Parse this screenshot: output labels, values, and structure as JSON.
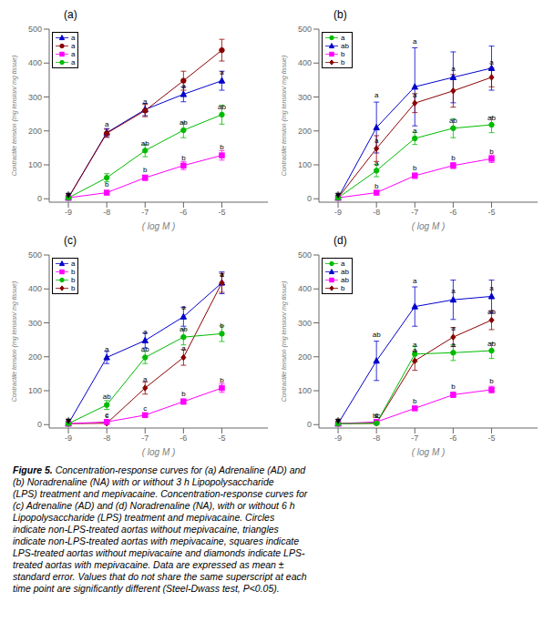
{
  "chart_data": [
    {
      "type": "line",
      "title": "(a)",
      "x_label": "( log M )",
      "y_label": "Contractile tension (mg tension/ mg tissue)",
      "xlim": [
        -9.5,
        -3.8
      ],
      "ylim": [
        -10,
        500
      ],
      "xticks": [
        -9,
        -8,
        -7,
        -6,
        -5
      ],
      "yticks": [
        0,
        100,
        200,
        300,
        400,
        500
      ],
      "x": [
        -9,
        -8,
        -7,
        -6,
        -5
      ],
      "series": [
        {
          "color": "#0000CC",
          "marker": "triangle",
          "values": [
            3,
            195,
            263,
            308,
            348
          ],
          "errors": [
            2,
            12,
            18,
            22,
            28
          ]
        },
        {
          "color": "#8B0000",
          "marker": "circle",
          "values": [
            3,
            193,
            260,
            348,
            438
          ],
          "errors": [
            2,
            12,
            18,
            28,
            32
          ]
        },
        {
          "color": "#FF00FF",
          "marker": "square",
          "values": [
            3,
            18,
            62,
            98,
            128
          ],
          "errors": [
            2,
            4,
            8,
            12,
            14
          ]
        },
        {
          "color": "#00BB00",
          "marker": "circle",
          "values": [
            3,
            62,
            142,
            202,
            248
          ],
          "errors": [
            2,
            12,
            18,
            22,
            28
          ]
        }
      ],
      "annotations": [
        {
          "x": -8,
          "y": 210,
          "text": "a"
        },
        {
          "x": -7,
          "y": 278,
          "text": "a"
        },
        {
          "x": -6,
          "y": 322,
          "text": "a"
        },
        {
          "x": -5,
          "y": 362,
          "text": "a"
        },
        {
          "x": -8,
          "y": 32,
          "text": "b"
        },
        {
          "x": -7,
          "y": 76,
          "text": "b"
        },
        {
          "x": -6,
          "y": 112,
          "text": "b"
        },
        {
          "x": -5,
          "y": 142,
          "text": "b"
        },
        {
          "x": -7,
          "y": 155,
          "text": "ab"
        },
        {
          "x": -6,
          "y": 215,
          "text": "ab"
        },
        {
          "x": -5,
          "y": 262,
          "text": "ab"
        }
      ],
      "arrows": [
        {
          "x": -9,
          "y_start": 22,
          "y_end": 3
        }
      ],
      "legend": "upper left",
      "legend_entries": [
        {
          "marker": "triangle",
          "color": "#0000CC",
          "label": "a"
        },
        {
          "marker": "circle",
          "color": "#8B0000",
          "label": "a"
        },
        {
          "marker": "square",
          "color": "#FF00FF",
          "label": "a"
        },
        {
          "marker": "circle",
          "color": "#00BB00",
          "label": "a"
        }
      ]
    },
    {
      "type": "line",
      "title": "(b)",
      "x_label": "( log M )",
      "y_label": "Contractile tension (mg tension/ mg tissue)",
      "xlim": [
        -9.5,
        -3.8
      ],
      "ylim": [
        -10,
        500
      ],
      "xticks": [
        -9,
        -8,
        -7,
        -6,
        -5
      ],
      "yticks": [
        0,
        100,
        200,
        300,
        400,
        500
      ],
      "x": [
        -9,
        -8,
        -7,
        -6,
        -5
      ],
      "series": [
        {
          "color": "#0000CC",
          "marker": "triangle",
          "values": [
            3,
            210,
            330,
            358,
            385
          ],
          "errors": [
            2,
            75,
            115,
            75,
            65
          ]
        },
        {
          "color": "#8B0000",
          "marker": "diamond",
          "values": [
            3,
            148,
            282,
            318,
            358
          ],
          "errors": [
            2,
            38,
            28,
            48,
            28
          ]
        },
        {
          "color": "#FF00FF",
          "marker": "square",
          "values": [
            3,
            18,
            68,
            98,
            118
          ],
          "errors": [
            2,
            4,
            8,
            9,
            11
          ]
        },
        {
          "color": "#00BB00",
          "marker": "circle",
          "values": [
            3,
            83,
            178,
            208,
            218
          ],
          "errors": [
            2,
            18,
            18,
            28,
            23
          ]
        }
      ],
      "annotations": [
        {
          "x": -8,
          "y": 295,
          "text": "a"
        },
        {
          "x": -7,
          "y": 455,
          "text": "a"
        },
        {
          "x": -6,
          "y": 375,
          "text": "a"
        },
        {
          "x": -5,
          "y": 392,
          "text": "a"
        },
        {
          "x": -8,
          "y": 96,
          "text": "a"
        },
        {
          "x": -7,
          "y": 192,
          "text": "a"
        },
        {
          "x": -6,
          "y": 220,
          "text": "ab"
        },
        {
          "x": -5,
          "y": 228,
          "text": "ab"
        },
        {
          "x": -8,
          "y": 162,
          "text": "a"
        },
        {
          "x": -7,
          "y": 295,
          "text": "a"
        },
        {
          "x": -8,
          "y": 28,
          "text": "b"
        },
        {
          "x": -7,
          "y": 80,
          "text": "b"
        },
        {
          "x": -6,
          "y": 110,
          "text": "b"
        },
        {
          "x": -5,
          "y": 130,
          "text": "b"
        }
      ],
      "arrows": [
        {
          "x": -9,
          "y_start": 22,
          "y_end": 3
        }
      ],
      "legend": "upper left",
      "legend_entries": [
        {
          "marker": "circle",
          "color": "#00BB00",
          "label": "a"
        },
        {
          "marker": "triangle",
          "color": "#0000CC",
          "label": "ab"
        },
        {
          "marker": "square",
          "color": "#FF00FF",
          "label": "b"
        },
        {
          "marker": "diamond",
          "color": "#8B0000",
          "label": "b"
        }
      ]
    },
    {
      "type": "line",
      "title": "(c)",
      "x_label": "( log M )",
      "y_label": "Contractile tension (mg tension/ mg tissue)",
      "xlim": [
        -9.5,
        -3.8
      ],
      "ylim": [
        -10,
        500
      ],
      "xticks": [
        -9,
        -8,
        -7,
        -6,
        -5
      ],
      "yticks": [
        0,
        100,
        200,
        300,
        400,
        500
      ],
      "x": [
        -9,
        -8,
        -7,
        -6,
        -5
      ],
      "series": [
        {
          "color": "#0000CC",
          "marker": "triangle",
          "values": [
            3,
            198,
            248,
            318,
            418
          ],
          "errors": [
            2,
            18,
            22,
            28,
            32
          ]
        },
        {
          "color": "#8B0000",
          "marker": "diamond",
          "values": [
            3,
            4,
            108,
            198,
            418
          ],
          "errors": [
            2,
            2,
            18,
            23,
            28
          ]
        },
        {
          "color": "#FF00FF",
          "marker": "square",
          "values": [
            3,
            8,
            28,
            68,
            108
          ],
          "errors": [
            2,
            2,
            4,
            8,
            13
          ]
        },
        {
          "color": "#00BB00",
          "marker": "circle",
          "values": [
            3,
            58,
            198,
            258,
            268
          ],
          "errors": [
            2,
            13,
            18,
            23,
            23
          ]
        }
      ],
      "annotations": [
        {
          "x": -8,
          "y": 212,
          "text": "a"
        },
        {
          "x": -7,
          "y": 265,
          "text": "a"
        },
        {
          "x": -6,
          "y": 335,
          "text": "a"
        },
        {
          "x": -5,
          "y": 432,
          "text": "a"
        },
        {
          "x": -8,
          "y": 16,
          "text": "c"
        },
        {
          "x": -7,
          "y": 125,
          "text": "a"
        },
        {
          "x": -6,
          "y": 215,
          "text": "a"
        },
        {
          "x": -5,
          "y": 432,
          "text": "a"
        },
        {
          "x": -8,
          "y": 72,
          "text": "ab"
        },
        {
          "x": -7,
          "y": 212,
          "text": "ab"
        },
        {
          "x": -6,
          "y": 272,
          "text": "ab"
        },
        {
          "x": -5,
          "y": 282,
          "text": "b"
        },
        {
          "x": -8,
          "y": 20,
          "text": "c"
        },
        {
          "x": -7,
          "y": 38,
          "text": "c"
        },
        {
          "x": -6,
          "y": 82,
          "text": "b"
        },
        {
          "x": -5,
          "y": 122,
          "text": "b"
        }
      ],
      "arrows": [
        {
          "x": -9,
          "y_start": 22,
          "y_end": 3
        }
      ],
      "legend": "upper left",
      "legend_entries": [
        {
          "marker": "triangle",
          "color": "#0000CC",
          "label": "a"
        },
        {
          "marker": "square",
          "color": "#FF00FF",
          "label": "b"
        },
        {
          "marker": "circle",
          "color": "#00BB00",
          "label": "b"
        },
        {
          "marker": "diamond",
          "color": "#8B0000",
          "label": "b"
        }
      ]
    },
    {
      "type": "line",
      "title": "(d)",
      "x_label": "( log M )",
      "y_label": "Contractile tension (mg tension/ mg tissue)",
      "xlim": [
        -9.5,
        -3.8
      ],
      "ylim": [
        -10,
        500
      ],
      "xticks": [
        -9,
        -8,
        -7,
        -6,
        -5
      ],
      "yticks": [
        0,
        100,
        200,
        300,
        400,
        500
      ],
      "x": [
        -9,
        -8,
        -7,
        -6,
        -5
      ],
      "series": [
        {
          "color": "#0000CC",
          "marker": "triangle",
          "values": [
            3,
            188,
            348,
            368,
            378
          ],
          "errors": [
            2,
            58,
            58,
            58,
            48
          ]
        },
        {
          "color": "#8B0000",
          "marker": "diamond",
          "values": [
            3,
            4,
            188,
            258,
            308
          ],
          "errors": [
            2,
            2,
            28,
            28,
            28
          ]
        },
        {
          "color": "#FF00FF",
          "marker": "square",
          "values": [
            3,
            8,
            48,
            88,
            103
          ],
          "errors": [
            2,
            2,
            4,
            8,
            10
          ]
        },
        {
          "color": "#00BB00",
          "marker": "circle",
          "values": [
            3,
            4,
            208,
            212,
            218
          ],
          "errors": [
            2,
            2,
            23,
            23,
            23
          ]
        }
      ],
      "annotations": [
        {
          "x": -8,
          "y": 255,
          "text": "ab"
        },
        {
          "x": -7,
          "y": 415,
          "text": "a"
        },
        {
          "x": -6,
          "y": 385,
          "text": "a"
        },
        {
          "x": -5,
          "y": 392,
          "text": "a"
        },
        {
          "x": -8,
          "y": 16,
          "text": "c"
        },
        {
          "x": -7,
          "y": 210,
          "text": "a"
        },
        {
          "x": -6,
          "y": 275,
          "text": "a"
        },
        {
          "x": -5,
          "y": 322,
          "text": "ab"
        },
        {
          "x": -8,
          "y": 18,
          "text": "bc"
        },
        {
          "x": -7,
          "y": 225,
          "text": "a"
        },
        {
          "x": -6,
          "y": 225,
          "text": "a"
        },
        {
          "x": -5,
          "y": 228,
          "text": "ab"
        },
        {
          "x": -8,
          "y": 20,
          "text": "c"
        },
        {
          "x": -7,
          "y": 60,
          "text": "b"
        },
        {
          "x": -6,
          "y": 102,
          "text": "b"
        },
        {
          "x": -5,
          "y": 118,
          "text": "b"
        }
      ],
      "arrows": [
        {
          "x": -9,
          "y_start": 22,
          "y_end": 3
        }
      ],
      "legend": "upper left",
      "legend_entries": [
        {
          "marker": "circle",
          "color": "#00BB00",
          "label": "a"
        },
        {
          "marker": "triangle",
          "color": "#0000CC",
          "label": "ab"
        },
        {
          "marker": "square",
          "color": "#FF00FF",
          "label": "ab"
        },
        {
          "marker": "diamond",
          "color": "#8B0000",
          "label": "b"
        }
      ]
    }
  ],
  "caption": [
    "Figure 5.",
    "Concentration-response curves for (a) Adrenaline (AD) and",
    "(b) Noradrenaline (NA) with or without 3 h Lipopolysaccharide",
    "(LPS) treatment and mepivacaine. Concentration-response curves for",
    "(c) Adrenaline (AD) and (d) Noradrenaline (NA), with or without 6 h",
    "Lipopolysaccharide (LPS) treatment and mepivacaine. Circles",
    "indicate non-LPS-treated aortas without mepivacaine, triangles",
    "indicate non-LPS-treated aortas with mepivacaine, squares indicate",
    "LPS-treated aortas without mepivacaine and diamonds indicate LPS-",
    "treated aortas with mepivacaine. Data are expressed as mean ±",
    "standard error. Values that do not share the same superscript at each",
    "time point are significantly different (Steel-Dwass test, P<0.05)."
  ]
}
